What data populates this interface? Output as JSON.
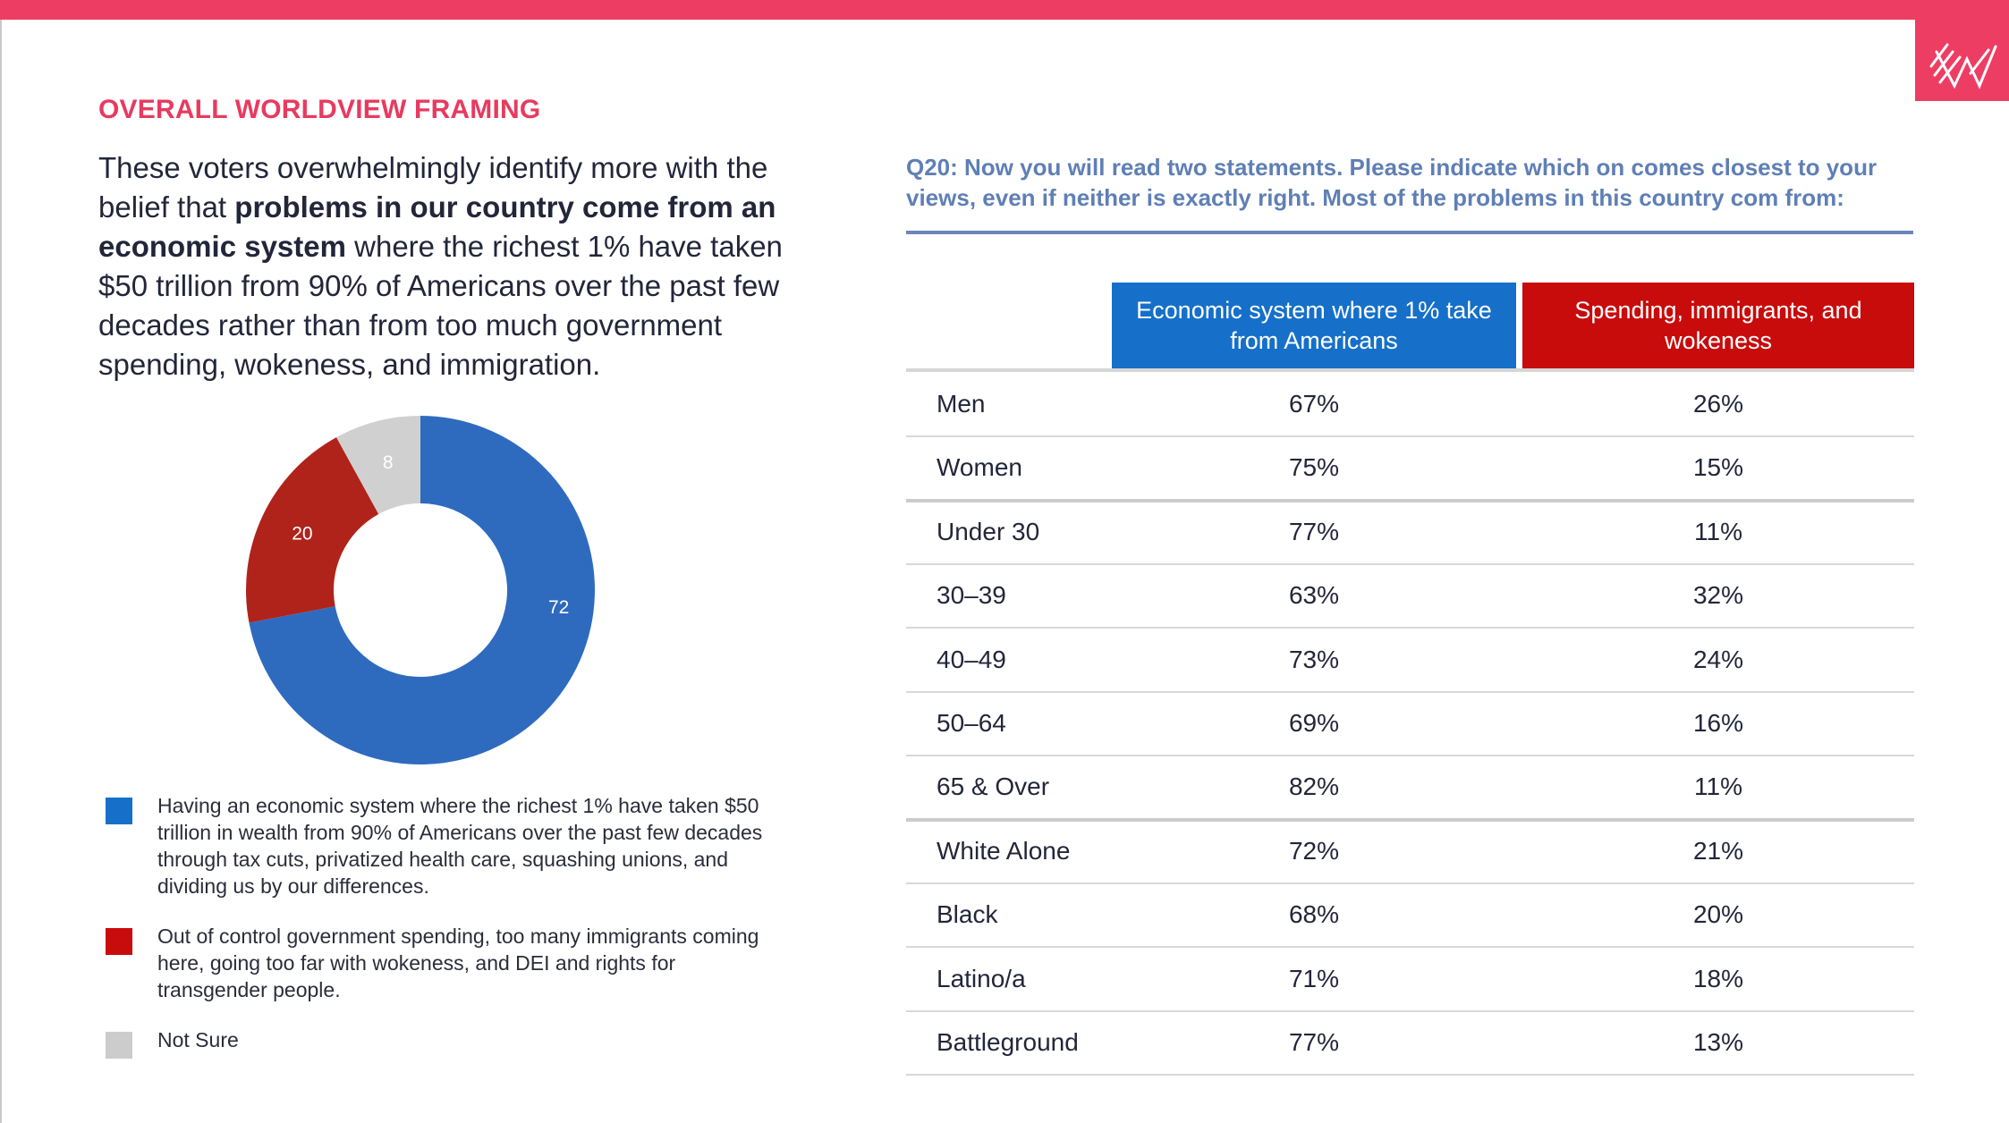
{
  "section_title": "OVERALL WORLDVIEW FRAMING",
  "intro": {
    "part1": "These voters overwhelmingly identify more with the belief that ",
    "bold1": "problems in our country come from an economic system",
    "part2": " where the richest 1% have taken $50 trillion from 90% of Americans over the past few decades rather than from too much government spending, wokeness, and immigration."
  },
  "colors": {
    "accent": "#ee3d63",
    "blue": "#1670c9",
    "red": "#c80c0c",
    "grey": "#d0d0d0",
    "donut_blue": "#2e6bbf",
    "donut_red": "#b0231a"
  },
  "chart_data": {
    "type": "pie",
    "style": "donut",
    "categories": [
      "Economic system",
      "Spending, immigrants, wokeness",
      "Not Sure"
    ],
    "values": [
      72,
      20,
      8
    ],
    "data_labels": [
      "72",
      "20",
      "8"
    ]
  },
  "legend": [
    {
      "text": "Having an economic system where the richest 1% have taken $50 trillion in wealth from 90% of Americans over the past few decades through tax cuts, privatized health care, squashing unions, and dividing us by our differences.",
      "color": "#1670c9"
    },
    {
      "text": "Out of control government spending, too many immigrants coming here, going too far with wokeness, and DEI and rights for transgender people.",
      "color": "#c80c0c"
    },
    {
      "text": "Not Sure",
      "color": "#cccccc"
    }
  ],
  "question": "Q20: Now you will read two statements. Please indicate which on comes closest to your views, even if neither is exactly right. Most of the problems in this country com from:",
  "table": {
    "headers": {
      "econ": "Economic system where 1% take from Americans",
      "spend": "Spending, immigrants, and wokeness"
    },
    "rows": [
      {
        "label": "Men",
        "econ": "67%",
        "spend": "26%"
      },
      {
        "label": "Women",
        "econ": "75%",
        "spend": "15%"
      },
      {
        "label": "Under 30",
        "econ": "77%",
        "spend": "11%"
      },
      {
        "label": "30–39",
        "econ": "63%",
        "spend": "32%"
      },
      {
        "label": "40–49",
        "econ": "73%",
        "spend": "24%"
      },
      {
        "label": "50–64",
        "econ": "69%",
        "spend": "16%"
      },
      {
        "label": "65 & Over",
        "econ": "82%",
        "spend": "11%"
      },
      {
        "label": "White Alone",
        "econ": "72%",
        "spend": "21%"
      },
      {
        "label": "Black",
        "econ": "68%",
        "spend": "20%"
      },
      {
        "label": "Latino/a",
        "econ": "71%",
        "spend": "18%"
      },
      {
        "label": "Battleground",
        "econ": "77%",
        "spend": "13%"
      }
    ]
  }
}
